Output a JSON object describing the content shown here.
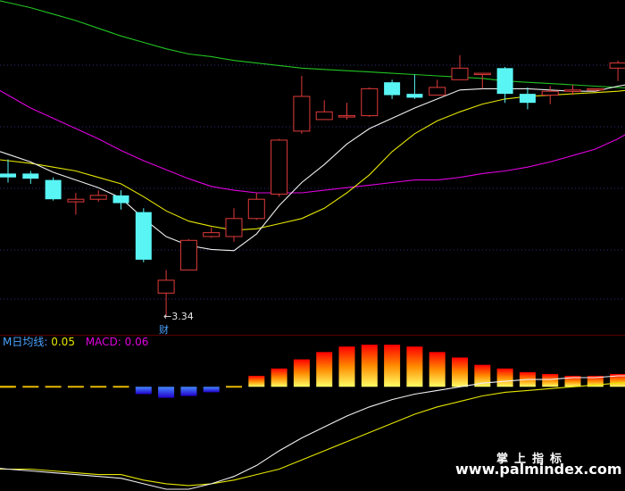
{
  "colors": {
    "background": "#000000",
    "up": "#e03a3a",
    "down": "#59f5f5",
    "ma5": "#f0f0f0",
    "ma10": "#e6e600",
    "ma20": "#e000e0",
    "ma60": "#22c322",
    "dotted_grid": "#2b2b7a",
    "histogram_positive": [
      "#ff0000",
      "#ff8c00",
      "#ffff66"
    ],
    "histogram_negative": [
      "#4488ff",
      "#2200cc"
    ]
  },
  "annotations": {
    "low_price": "3.34",
    "low_arrow": "←",
    "event_marker": "财"
  },
  "macd_header": {
    "ma_label": "M日均线:",
    "ma_value": "0.05",
    "macd_label": "MACD:",
    "macd_value": "0.06"
  },
  "watermark": {
    "chinese": "掌上指标",
    "url": "www.palmindex.com"
  },
  "chart_data": [
    {
      "type": "candlestick",
      "candles": [
        {
          "o": 4.45,
          "c": 4.42,
          "h": 4.56,
          "l": 4.38
        },
        {
          "o": 4.45,
          "c": 4.41,
          "h": 4.47,
          "l": 4.37
        },
        {
          "o": 4.4,
          "c": 4.25,
          "h": 4.42,
          "l": 4.24
        },
        {
          "o": 4.23,
          "c": 4.25,
          "h": 4.3,
          "l": 4.13
        },
        {
          "o": 4.25,
          "c": 4.28,
          "h": 4.32,
          "l": 4.23
        },
        {
          "o": 4.28,
          "c": 4.22,
          "h": 4.32,
          "l": 4.17
        },
        {
          "o": 4.15,
          "c": 3.78,
          "h": 4.18,
          "l": 3.76
        },
        {
          "o": 3.52,
          "c": 3.62,
          "h": 3.7,
          "l": 3.34
        },
        {
          "o": 3.7,
          "c": 3.93,
          "h": 3.94,
          "l": 3.7
        },
        {
          "o": 3.96,
          "c": 3.99,
          "h": 4.03,
          "l": 3.95
        },
        {
          "o": 3.96,
          "c": 4.1,
          "h": 4.18,
          "l": 3.92
        },
        {
          "o": 4.1,
          "c": 4.25,
          "h": 4.3,
          "l": 4.09
        },
        {
          "o": 4.29,
          "c": 4.71,
          "h": 4.72,
          "l": 4.27
        },
        {
          "o": 4.78,
          "c": 5.05,
          "h": 5.21,
          "l": 4.76
        },
        {
          "o": 4.87,
          "c": 4.93,
          "h": 5.02,
          "l": 4.87
        },
        {
          "o": 4.9,
          "c": 4.9,
          "h": 5.0,
          "l": 4.87
        },
        {
          "o": 4.9,
          "c": 5.11,
          "h": 5.12,
          "l": 4.89
        },
        {
          "o": 5.16,
          "c": 5.06,
          "h": 5.18,
          "l": 5.03
        },
        {
          "o": 5.07,
          "c": 5.04,
          "h": 5.22,
          "l": 5.03
        },
        {
          "o": 5.06,
          "c": 5.12,
          "h": 5.18,
          "l": 5.06
        },
        {
          "o": 5.18,
          "c": 5.27,
          "h": 5.37,
          "l": 5.18
        },
        {
          "o": 5.23,
          "c": 5.23,
          "h": 5.23,
          "l": 5.11
        },
        {
          "o": 5.27,
          "c": 5.07,
          "h": 5.28,
          "l": 5.0
        },
        {
          "o": 5.07,
          "c": 5.0,
          "h": 5.12,
          "l": 4.95
        },
        {
          "o": 5.06,
          "c": 5.09,
          "h": 5.13,
          "l": 4.99
        },
        {
          "o": 5.09,
          "c": 5.1,
          "h": 5.14,
          "l": 5.06
        },
        {
          "o": 5.1,
          "c": 5.11,
          "h": 5.11,
          "l": 5.09
        },
        {
          "o": 5.27,
          "c": 5.31,
          "h": 5.33,
          "l": 5.17
        },
        {
          "o": 5.19,
          "c": 5.21,
          "h": 5.26,
          "l": 5.06
        }
      ],
      "ma5": [
        4.6,
        4.54,
        4.46,
        4.4,
        4.34,
        4.26,
        4.1,
        3.96,
        3.89,
        3.86,
        3.85,
        3.98,
        4.2,
        4.38,
        4.52,
        4.68,
        4.8,
        4.88,
        4.96,
        5.03,
        5.1,
        5.11,
        5.11,
        5.11,
        5.1,
        5.09,
        5.09,
        5.13,
        5.16
      ],
      "ma10": [
        4.55,
        4.53,
        4.5,
        4.47,
        4.42,
        4.37,
        4.27,
        4.16,
        4.08,
        4.04,
        4.01,
        4.02,
        4.06,
        4.1,
        4.18,
        4.3,
        4.44,
        4.62,
        4.76,
        4.86,
        4.93,
        4.99,
        5.03,
        5.05,
        5.06,
        5.07,
        5.08,
        5.09,
        5.11
      ],
      "ma20": [
        5.06,
        4.96,
        4.88,
        4.8,
        4.72,
        4.63,
        4.55,
        4.48,
        4.41,
        4.35,
        4.32,
        4.3,
        4.3,
        4.3,
        4.32,
        4.34,
        4.36,
        4.38,
        4.4,
        4.4,
        4.42,
        4.45,
        4.47,
        4.5,
        4.54,
        4.59,
        4.64,
        4.72,
        4.82
      ],
      "ma60": [
        5.78,
        5.74,
        5.69,
        5.64,
        5.58,
        5.52,
        5.47,
        5.42,
        5.38,
        5.36,
        5.33,
        5.31,
        5.29,
        5.27,
        5.26,
        5.25,
        5.24,
        5.23,
        5.22,
        5.21,
        5.2,
        5.19,
        5.17,
        5.16,
        5.15,
        5.14,
        5.13,
        5.12,
        5.11
      ],
      "ylim": [
        3.3,
        5.8
      ]
    },
    {
      "type": "bar",
      "name": "MACD",
      "values": [
        -0.005,
        -0.005,
        -0.005,
        -0.005,
        -0.005,
        -0.005,
        -0.04,
        -0.06,
        -0.05,
        -0.03,
        0.005,
        0.06,
        0.1,
        0.15,
        0.19,
        0.22,
        0.23,
        0.23,
        0.22,
        0.19,
        0.16,
        0.12,
        0.1,
        0.08,
        0.07,
        0.06,
        0.06,
        0.07,
        0.06
      ],
      "dif": [
        -0.45,
        -0.46,
        -0.47,
        -0.48,
        -0.49,
        -0.5,
        -0.53,
        -0.56,
        -0.56,
        -0.53,
        -0.49,
        -0.43,
        -0.35,
        -0.28,
        -0.22,
        -0.16,
        -0.11,
        -0.07,
        -0.04,
        -0.02,
        0.0,
        0.02,
        0.03,
        0.04,
        0.04,
        0.05,
        0.05,
        0.06,
        0.06
      ],
      "dea": [
        -0.45,
        -0.45,
        -0.46,
        -0.47,
        -0.48,
        -0.48,
        -0.51,
        -0.53,
        -0.54,
        -0.53,
        -0.51,
        -0.48,
        -0.45,
        -0.4,
        -0.35,
        -0.3,
        -0.25,
        -0.2,
        -0.15,
        -0.11,
        -0.08,
        -0.05,
        -0.03,
        -0.02,
        -0.01,
        0.0,
        0.01,
        0.02,
        0.03
      ],
      "ylim": [
        -0.56,
        0.26
      ]
    }
  ]
}
